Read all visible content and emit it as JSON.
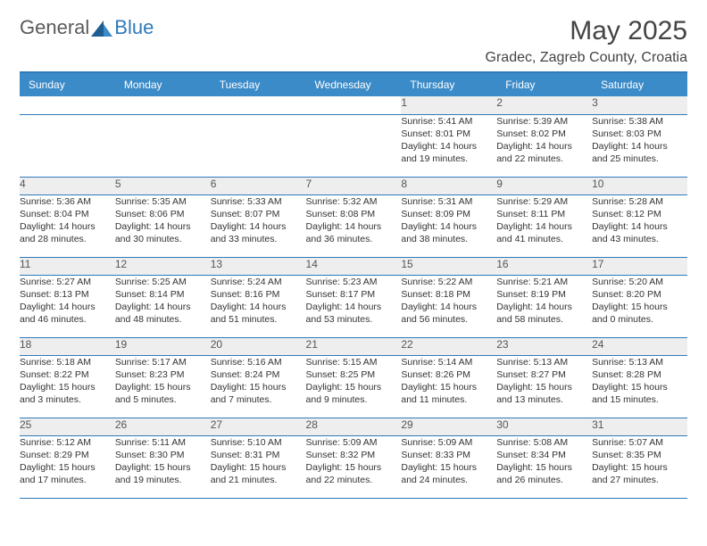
{
  "brand": {
    "general": "General",
    "blue": "Blue"
  },
  "title": "May 2025",
  "location": "Gradec, Zagreb County, Croatia",
  "colors": {
    "header_bg": "#3b8bc8",
    "header_text": "#ffffff",
    "rule": "#2f79b9",
    "daynum_bg": "#eeeeee",
    "body_text": "#333333",
    "logo_gray": "#5a5a5a",
    "logo_blue": "#2f79b9"
  },
  "weekdays": [
    "Sunday",
    "Monday",
    "Tuesday",
    "Wednesday",
    "Thursday",
    "Friday",
    "Saturday"
  ],
  "weeks": [
    [
      null,
      null,
      null,
      null,
      {
        "n": "1",
        "sr": "Sunrise: 5:41 AM",
        "ss": "Sunset: 8:01 PM",
        "d1": "Daylight: 14 hours",
        "d2": "and 19 minutes."
      },
      {
        "n": "2",
        "sr": "Sunrise: 5:39 AM",
        "ss": "Sunset: 8:02 PM",
        "d1": "Daylight: 14 hours",
        "d2": "and 22 minutes."
      },
      {
        "n": "3",
        "sr": "Sunrise: 5:38 AM",
        "ss": "Sunset: 8:03 PM",
        "d1": "Daylight: 14 hours",
        "d2": "and 25 minutes."
      }
    ],
    [
      {
        "n": "4",
        "sr": "Sunrise: 5:36 AM",
        "ss": "Sunset: 8:04 PM",
        "d1": "Daylight: 14 hours",
        "d2": "and 28 minutes."
      },
      {
        "n": "5",
        "sr": "Sunrise: 5:35 AM",
        "ss": "Sunset: 8:06 PM",
        "d1": "Daylight: 14 hours",
        "d2": "and 30 minutes."
      },
      {
        "n": "6",
        "sr": "Sunrise: 5:33 AM",
        "ss": "Sunset: 8:07 PM",
        "d1": "Daylight: 14 hours",
        "d2": "and 33 minutes."
      },
      {
        "n": "7",
        "sr": "Sunrise: 5:32 AM",
        "ss": "Sunset: 8:08 PM",
        "d1": "Daylight: 14 hours",
        "d2": "and 36 minutes."
      },
      {
        "n": "8",
        "sr": "Sunrise: 5:31 AM",
        "ss": "Sunset: 8:09 PM",
        "d1": "Daylight: 14 hours",
        "d2": "and 38 minutes."
      },
      {
        "n": "9",
        "sr": "Sunrise: 5:29 AM",
        "ss": "Sunset: 8:11 PM",
        "d1": "Daylight: 14 hours",
        "d2": "and 41 minutes."
      },
      {
        "n": "10",
        "sr": "Sunrise: 5:28 AM",
        "ss": "Sunset: 8:12 PM",
        "d1": "Daylight: 14 hours",
        "d2": "and 43 minutes."
      }
    ],
    [
      {
        "n": "11",
        "sr": "Sunrise: 5:27 AM",
        "ss": "Sunset: 8:13 PM",
        "d1": "Daylight: 14 hours",
        "d2": "and 46 minutes."
      },
      {
        "n": "12",
        "sr": "Sunrise: 5:25 AM",
        "ss": "Sunset: 8:14 PM",
        "d1": "Daylight: 14 hours",
        "d2": "and 48 minutes."
      },
      {
        "n": "13",
        "sr": "Sunrise: 5:24 AM",
        "ss": "Sunset: 8:16 PM",
        "d1": "Daylight: 14 hours",
        "d2": "and 51 minutes."
      },
      {
        "n": "14",
        "sr": "Sunrise: 5:23 AM",
        "ss": "Sunset: 8:17 PM",
        "d1": "Daylight: 14 hours",
        "d2": "and 53 minutes."
      },
      {
        "n": "15",
        "sr": "Sunrise: 5:22 AM",
        "ss": "Sunset: 8:18 PM",
        "d1": "Daylight: 14 hours",
        "d2": "and 56 minutes."
      },
      {
        "n": "16",
        "sr": "Sunrise: 5:21 AM",
        "ss": "Sunset: 8:19 PM",
        "d1": "Daylight: 14 hours",
        "d2": "and 58 minutes."
      },
      {
        "n": "17",
        "sr": "Sunrise: 5:20 AM",
        "ss": "Sunset: 8:20 PM",
        "d1": "Daylight: 15 hours",
        "d2": "and 0 minutes."
      }
    ],
    [
      {
        "n": "18",
        "sr": "Sunrise: 5:18 AM",
        "ss": "Sunset: 8:22 PM",
        "d1": "Daylight: 15 hours",
        "d2": "and 3 minutes."
      },
      {
        "n": "19",
        "sr": "Sunrise: 5:17 AM",
        "ss": "Sunset: 8:23 PM",
        "d1": "Daylight: 15 hours",
        "d2": "and 5 minutes."
      },
      {
        "n": "20",
        "sr": "Sunrise: 5:16 AM",
        "ss": "Sunset: 8:24 PM",
        "d1": "Daylight: 15 hours",
        "d2": "and 7 minutes."
      },
      {
        "n": "21",
        "sr": "Sunrise: 5:15 AM",
        "ss": "Sunset: 8:25 PM",
        "d1": "Daylight: 15 hours",
        "d2": "and 9 minutes."
      },
      {
        "n": "22",
        "sr": "Sunrise: 5:14 AM",
        "ss": "Sunset: 8:26 PM",
        "d1": "Daylight: 15 hours",
        "d2": "and 11 minutes."
      },
      {
        "n": "23",
        "sr": "Sunrise: 5:13 AM",
        "ss": "Sunset: 8:27 PM",
        "d1": "Daylight: 15 hours",
        "d2": "and 13 minutes."
      },
      {
        "n": "24",
        "sr": "Sunrise: 5:13 AM",
        "ss": "Sunset: 8:28 PM",
        "d1": "Daylight: 15 hours",
        "d2": "and 15 minutes."
      }
    ],
    [
      {
        "n": "25",
        "sr": "Sunrise: 5:12 AM",
        "ss": "Sunset: 8:29 PM",
        "d1": "Daylight: 15 hours",
        "d2": "and 17 minutes."
      },
      {
        "n": "26",
        "sr": "Sunrise: 5:11 AM",
        "ss": "Sunset: 8:30 PM",
        "d1": "Daylight: 15 hours",
        "d2": "and 19 minutes."
      },
      {
        "n": "27",
        "sr": "Sunrise: 5:10 AM",
        "ss": "Sunset: 8:31 PM",
        "d1": "Daylight: 15 hours",
        "d2": "and 21 minutes."
      },
      {
        "n": "28",
        "sr": "Sunrise: 5:09 AM",
        "ss": "Sunset: 8:32 PM",
        "d1": "Daylight: 15 hours",
        "d2": "and 22 minutes."
      },
      {
        "n": "29",
        "sr": "Sunrise: 5:09 AM",
        "ss": "Sunset: 8:33 PM",
        "d1": "Daylight: 15 hours",
        "d2": "and 24 minutes."
      },
      {
        "n": "30",
        "sr": "Sunrise: 5:08 AM",
        "ss": "Sunset: 8:34 PM",
        "d1": "Daylight: 15 hours",
        "d2": "and 26 minutes."
      },
      {
        "n": "31",
        "sr": "Sunrise: 5:07 AM",
        "ss": "Sunset: 8:35 PM",
        "d1": "Daylight: 15 hours",
        "d2": "and 27 minutes."
      }
    ]
  ]
}
